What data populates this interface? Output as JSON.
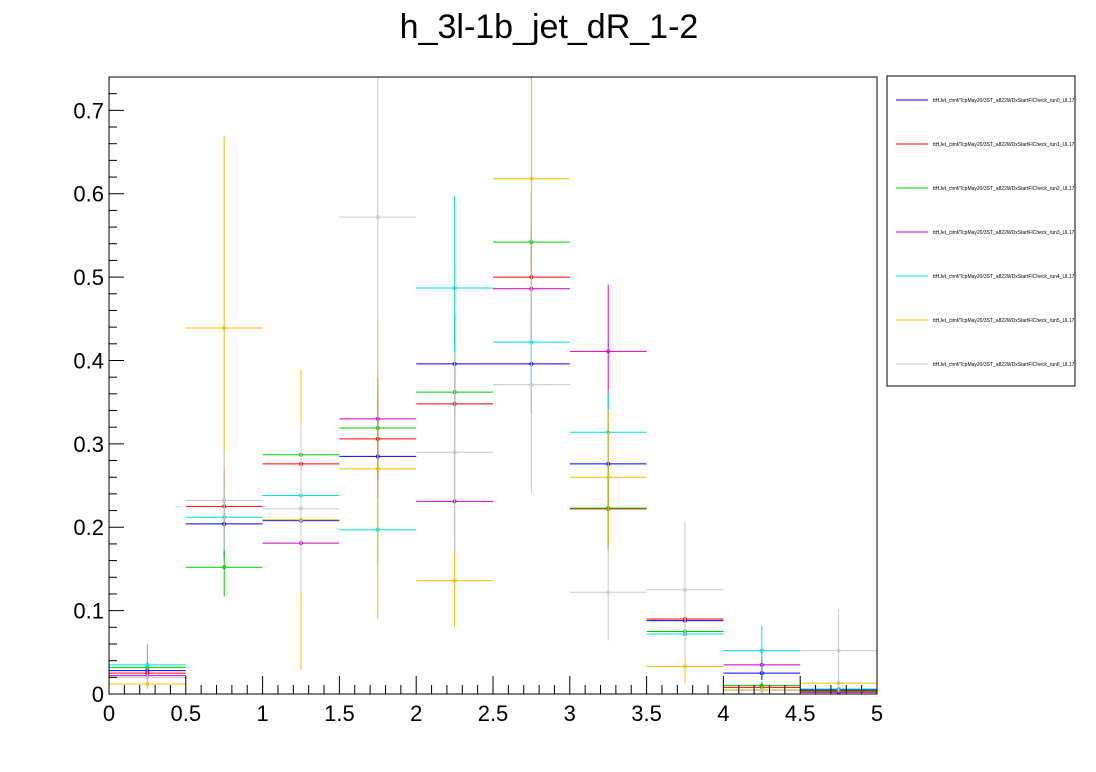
{
  "chart_data": {
    "type": "scatter",
    "title": "h_3l-1b_jet_dR_1-2",
    "xlabel": "",
    "ylabel": "",
    "xlim": [
      0,
      5
    ],
    "ylim": [
      0,
      0.74
    ],
    "xticks": [
      "0",
      "0.5",
      "1",
      "1.5",
      "2",
      "2.5",
      "3",
      "3.5",
      "4",
      "4.5",
      "5"
    ],
    "yticks": [
      "0",
      "0.1",
      "0.2",
      "0.3",
      "0.4",
      "0.5",
      "0.6",
      "0.7"
    ],
    "bin_edges": [
      0,
      0.5,
      1,
      1.5,
      2,
      2.5,
      3,
      3.5,
      4,
      4.5,
      5
    ],
    "grid": false,
    "legend_position": "top-right outside",
    "series": [
      {
        "name": "ttHJet_ctmf/TcpMay20/3ST_a822WDxStartFICheck_run0_UL17",
        "color": "#0000ff",
        "values": [
          0.028,
          0.204,
          0.208,
          0.285,
          0.396,
          0.396,
          0.276,
          0.088,
          0.025,
          0.005
        ],
        "errors": [
          0.006,
          0.04,
          0.04,
          0.05,
          0.06,
          0.06,
          0.05,
          0.02,
          0.008,
          0.003
        ]
      },
      {
        "name": "ttHJet_ctmf/TcpMay20/3ST_a822WDxStartFICheck_run1_UL17",
        "color": "#ff0000",
        "values": [
          0.025,
          0.225,
          0.276,
          0.306,
          0.348,
          0.5,
          0.222,
          0.09,
          0.008,
          0.004
        ],
        "errors": [
          0.006,
          0.04,
          0.04,
          0.05,
          0.06,
          0.06,
          0.05,
          0.02,
          0.005,
          0.003
        ]
      },
      {
        "name": "ttHJet_ctmf/TcpMay20/3ST_a822WDxStartFICheck_run2_UL17",
        "color": "#00cc00",
        "values": [
          0.032,
          0.152,
          0.287,
          0.319,
          0.362,
          0.542,
          0.223,
          0.075,
          0.01,
          0.003
        ],
        "errors": [
          0.007,
          0.035,
          0.04,
          0.05,
          0.06,
          0.06,
          0.05,
          0.02,
          0.005,
          0.002
        ]
      },
      {
        "name": "ttHJet_ctmf/TcpMay20/3ST_a822WDxStartFICheck_run3_UL17",
        "color": "#cc00cc",
        "values": [
          0.022,
          0.232,
          0.181,
          0.33,
          0.231,
          0.486,
          0.411,
          0.072,
          0.035,
          0.002
        ],
        "errors": [
          0.006,
          0.04,
          0.035,
          0.05,
          0.06,
          0.06,
          0.08,
          0.02,
          0.01,
          0.002
        ]
      },
      {
        "name": "ttHJet_ctmf/TcpMay20/3ST_a822WDxStartFICheck_run4_UL17",
        "color": "#00e0e0",
        "values": [
          0.035,
          0.212,
          0.238,
          0.197,
          0.487,
          0.422,
          0.314,
          0.072,
          0.052,
          0.006
        ],
        "errors": [
          0.025,
          0.04,
          0.04,
          0.04,
          0.11,
          0.06,
          0.05,
          0.02,
          0.03,
          0.004
        ]
      },
      {
        "name": "ttHJet_ctmf/TcpMay20/3ST_a822WDxStartFICheck_run5_UL17",
        "color": "#f0c000",
        "values": [
          0.012,
          0.439,
          0.209,
          0.27,
          0.136,
          0.618,
          0.26,
          0.033,
          0.005,
          0.013
        ],
        "errors": [
          0.006,
          0.23,
          0.18,
          0.18,
          0.055,
          0.13,
          0.08,
          0.02,
          0.004,
          0.005
        ]
      },
      {
        "name": "ttHJet_ctmf/TcpMay20/3ST_a822WDxStartFICheck_run6_UL17",
        "color": "#c8c8c8",
        "values": [
          0.02,
          0.232,
          0.222,
          0.572,
          0.29,
          0.371,
          0.122,
          0.125,
          0.004,
          0.052
        ],
        "errors": [
          0.006,
          0.06,
          0.1,
          0.18,
          0.12,
          0.13,
          0.058,
          0.082,
          0.004,
          0.05
        ]
      }
    ]
  }
}
